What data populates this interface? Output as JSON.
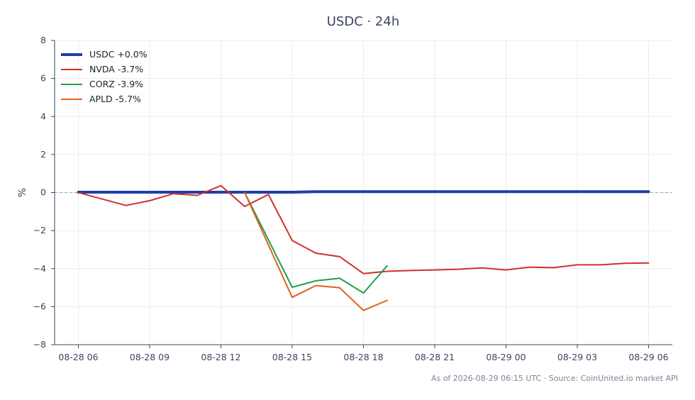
{
  "title": "USDC · 24h",
  "footer": "As of 2026-08-29 06:15 UTC · Source: CoinUnited.io market API",
  "chart_data": {
    "type": "line",
    "title": "USDC · 24h",
    "xlabel": "",
    "ylabel": "%",
    "x_ticks": [
      "08-28 06",
      "08-28 09",
      "08-28 12",
      "08-28 15",
      "08-28 18",
      "08-28 21",
      "08-29 00",
      "08-29 03",
      "08-29 06"
    ],
    "xlim": [
      "08-28 05",
      "08-29 07"
    ],
    "ylim": [
      -8,
      8
    ],
    "y_ticks": [
      8,
      6,
      4,
      2,
      0,
      -2,
      -4,
      -6,
      -8
    ],
    "grid": true,
    "legend_position": "top-left",
    "zero_line": true,
    "series": [
      {
        "name": "USDC +0.0%",
        "color": "#1f3fa8",
        "width": 4,
        "x": [
          "08-28 06",
          "08-28 09",
          "08-28 12",
          "08-28 15",
          "08-28 16",
          "08-28 18",
          "08-28 21",
          "08-29 00",
          "08-29 03",
          "08-29 06"
        ],
        "y": [
          0.02,
          0.02,
          0.02,
          0.02,
          0.05,
          0.05,
          0.05,
          0.05,
          0.05,
          0.05
        ]
      },
      {
        "name": "NVDA -3.7%",
        "color": "#d0302f",
        "width": 2,
        "x": [
          "08-28 06",
          "08-28 08",
          "08-28 09",
          "08-28 10",
          "08-28 11",
          "08-28 12",
          "08-28 13",
          "08-28 14",
          "08-28 15",
          "08-28 16",
          "08-28 17",
          "08-28 18",
          "08-28 19",
          "08-28 20",
          "08-28 21",
          "08-28 22",
          "08-28 23",
          "08-29 00",
          "08-29 01",
          "08-29 02",
          "08-29 03",
          "08-29 04",
          "08-29 05",
          "08-29 06"
        ],
        "y": [
          0.0,
          -0.68,
          -0.43,
          -0.06,
          -0.15,
          0.36,
          -0.73,
          -0.1,
          -2.52,
          -3.19,
          -3.37,
          -4.26,
          -4.14,
          -4.1,
          -4.07,
          -4.03,
          -3.96,
          -4.07,
          -3.92,
          -3.95,
          -3.8,
          -3.8,
          -3.72,
          -3.7
        ]
      },
      {
        "name": "CORZ -3.9%",
        "color": "#22a04b",
        "width": 2,
        "x": [
          "08-28 13",
          "08-28 15",
          "08-28 16",
          "08-28 17",
          "08-28 18",
          "08-28 19"
        ],
        "y": [
          0.0,
          -4.98,
          -4.64,
          -4.51,
          -5.28,
          -3.85
        ]
      },
      {
        "name": "APLD -5.7%",
        "color": "#e0621a",
        "width": 2,
        "x": [
          "08-28 13",
          "08-28 15",
          "08-28 16",
          "08-28 17",
          "08-28 18",
          "08-28 19"
        ],
        "y": [
          0.0,
          -5.51,
          -4.89,
          -5.01,
          -6.2,
          -5.67
        ]
      }
    ]
  }
}
